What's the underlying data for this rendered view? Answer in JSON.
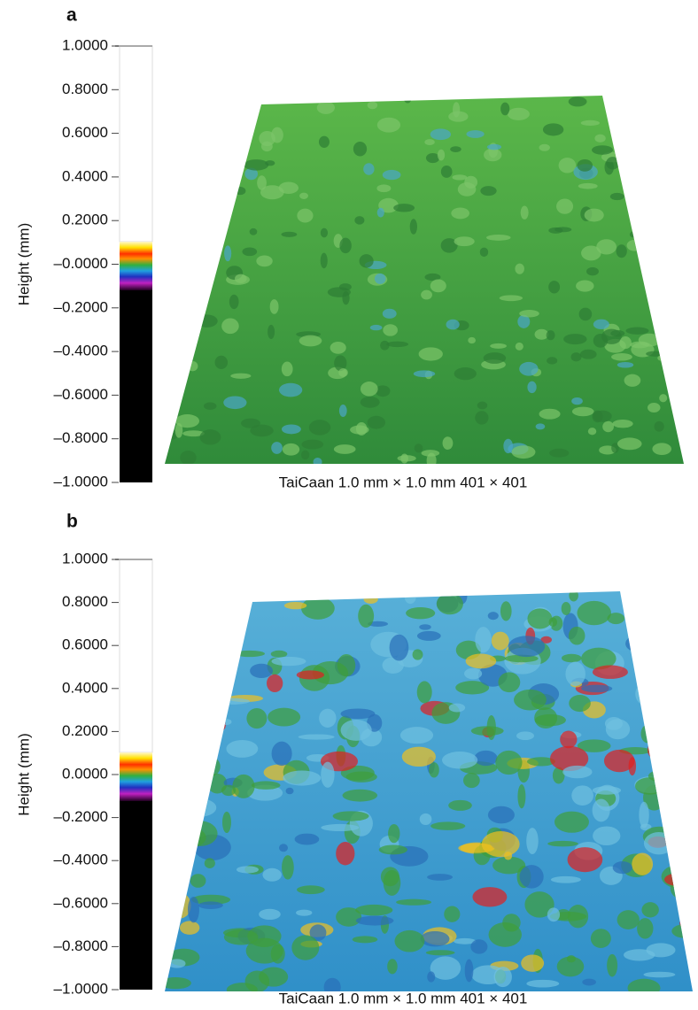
{
  "panels": [
    {
      "label": "a",
      "axis_label": "Height (mm)",
      "ticks": [
        "1.0000",
        "0.8000",
        "0.6000",
        "0.4000",
        "0.2000",
        "–0.0000",
        "–0.2000",
        "–0.4000",
        "–0.6000",
        "–0.8000",
        "–1.0000"
      ],
      "caption": "TaiCaan 1.0 mm × 1.0 mm 401 × 401"
    },
    {
      "label": "b",
      "axis_label": "Height (mm)",
      "ticks": [
        "1.0000",
        "0.8000",
        "0.6000",
        "0.4000",
        "0.2000",
        "0.0000",
        "–0.2000",
        "–0.4000",
        "–0.6000",
        "–0.8000",
        "–1.0000"
      ],
      "caption": "TaiCaan 1.0 mm × 1.0 mm 401 × 401"
    }
  ]
}
